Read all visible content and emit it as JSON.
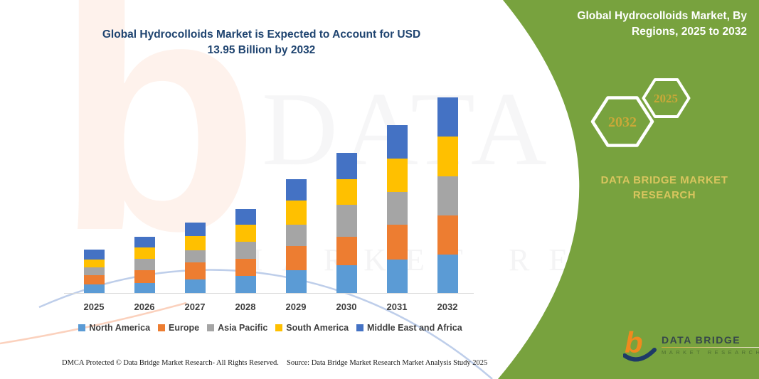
{
  "header": {
    "title_line1": "Global Hydrocolloids Market is Expected to Account for USD",
    "title_line2": "13.95 Billion by 2032"
  },
  "side_panel": {
    "title_line1": "Global Hydrocolloids Market, By",
    "title_line2": "Regions, 2025 to 2032",
    "hexagon_back_year": "2025",
    "hexagon_front_year": "2032",
    "brand_line1": "DATA BRIDGE MARKET",
    "brand_line2": "RESEARCH",
    "panel_color": "#78A23E",
    "accent_gold": "#C9A838"
  },
  "chart_data": {
    "type": "bar",
    "stacked": true,
    "title": "Global Hydrocolloids Market is Expected to Account for USD 13.95 Billion by 2032",
    "unit": "USD Billion",
    "xlabel": "",
    "ylabel": "",
    "ylim": [
      0,
      14
    ],
    "grid": false,
    "legend_position": "bottom",
    "categories": [
      "2025",
      "2026",
      "2027",
      "2028",
      "2029",
      "2030",
      "2031",
      "2032"
    ],
    "series": [
      {
        "name": "North America",
        "color": "#5B9BD5",
        "values": [
          0.62,
          0.71,
          0.96,
          1.23,
          1.6,
          1.97,
          2.36,
          2.73
        ]
      },
      {
        "name": "Europe",
        "color": "#ED7D31",
        "values": [
          0.64,
          0.9,
          1.21,
          1.21,
          1.74,
          2.02,
          2.48,
          2.78
        ]
      },
      {
        "name": "Asia Pacific",
        "color": "#A5A5A5",
        "values": [
          0.56,
          0.82,
          0.86,
          1.23,
          1.52,
          2.28,
          2.36,
          2.82
        ]
      },
      {
        "name": "South America",
        "color": "#FFC000",
        "values": [
          0.54,
          0.81,
          1.01,
          1.18,
          1.72,
          1.81,
          2.39,
          2.83
        ]
      },
      {
        "name": "Middle East and Africa",
        "color": "#4472C4",
        "values": [
          0.71,
          0.76,
          0.96,
          1.15,
          1.53,
          1.91,
          2.38,
          2.78
        ]
      }
    ],
    "totals_by_year": [
      3.07,
      4.0,
      5.0,
      6.0,
      8.11,
      9.99,
      11.97,
      13.94
    ]
  },
  "watermark": {
    "letter": "b",
    "text_primary": "DATA BRI",
    "text_secondary": "MARKET RESEARCH"
  },
  "footer": {
    "dmca": "DMCA Protected © Data Bridge Market Research-  All Rights Reserved.",
    "source": "Source: Data Bridge Market Research  Market Analysis Study 2025"
  },
  "logo": {
    "name": "DATA BRIDGE",
    "subtitle": "MARKET RESEARCH"
  }
}
